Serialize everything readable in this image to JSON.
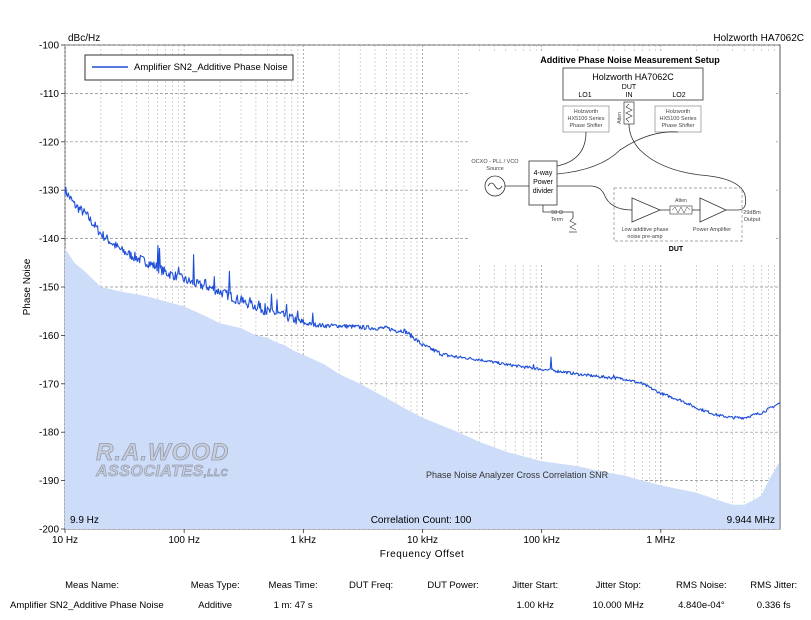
{
  "chart_data": {
    "type": "line",
    "instrument": "Holzworth HA7062C",
    "y_unit": "dBc/Hz",
    "xlabel": "Frequency Offset",
    "ylabel": "Phase Noise",
    "xscale": "log",
    "xlim": [
      10,
      10000000
    ],
    "ylim": [
      -200,
      -100
    ],
    "x_ticks": [
      {
        "value": 10,
        "label": "10 Hz"
      },
      {
        "value": 100,
        "label": "100 Hz"
      },
      {
        "value": 1000,
        "label": "1 kHz"
      },
      {
        "value": 10000,
        "label": "10 kHz"
      },
      {
        "value": 100000,
        "label": "100 kHz"
      },
      {
        "value": 1000000,
        "label": "1 MHz"
      }
    ],
    "y_ticks": [
      -100,
      -110,
      -120,
      -130,
      -140,
      -150,
      -160,
      -170,
      -180,
      -190,
      -200
    ],
    "grid": true,
    "legend": {
      "position": "top-left",
      "entries": [
        "Amplifier SN2_Additive Phase Noise"
      ]
    },
    "start_label": "9.9 Hz",
    "stop_label": "9.944 MHz",
    "correlation_label": "Correlation Count:  100",
    "snr_label": "Phase Noise Analyzer Cross Correlation SNR",
    "series": [
      {
        "name": "Amplifier SN2_Additive Phase Noise",
        "color": "#1f4fd8",
        "x": [
          10,
          12,
          15,
          20,
          25,
          30,
          40,
          50,
          60,
          70,
          80,
          100,
          130,
          160,
          200,
          250,
          300,
          400,
          500,
          600,
          700,
          800,
          1000,
          1500,
          2000,
          3000,
          4000,
          5000,
          6000,
          7000,
          8000,
          10000,
          15000,
          20000,
          30000,
          50000,
          70000,
          100000,
          150000,
          200000,
          300000,
          500000,
          700000,
          1000000,
          1500000,
          2000000,
          3000000,
          4000000,
          5000000,
          7000000,
          9944000
        ],
        "y": [
          -130,
          -133,
          -135,
          -139,
          -141,
          -142.5,
          -144,
          -145,
          -146,
          -147,
          -147.5,
          -148.5,
          -149.5,
          -150,
          -151,
          -152,
          -153,
          -154,
          -155,
          -155.5,
          -156,
          -156.5,
          -157.5,
          -158,
          -158,
          -158.3,
          -158.5,
          -158.5,
          -159,
          -159,
          -160,
          -162,
          -164,
          -164.5,
          -165,
          -166,
          -166.5,
          -167,
          -167.5,
          -168,
          -168.5,
          -169,
          -170,
          -172,
          -173.5,
          -175,
          -176.5,
          -177,
          -177,
          -176,
          -174
        ]
      },
      {
        "name": "Phase Noise Analyzer Cross Correlation SNR",
        "color": "#cddcf8",
        "fill": true,
        "x": [
          10,
          12,
          15,
          20,
          30,
          40,
          50,
          70,
          100,
          150,
          200,
          300,
          400,
          500,
          600,
          700,
          800,
          1000,
          1500,
          2000,
          3000,
          5000,
          7000,
          10000,
          20000,
          30000,
          50000,
          100000,
          200000,
          300000,
          500000,
          700000,
          1000000,
          2000000,
          3000000,
          4000000,
          5000000,
          6000000,
          7000000,
          8000000,
          9944000
        ],
        "y": [
          -142,
          -145,
          -147,
          -150,
          -151,
          -151.5,
          -152,
          -153,
          -154,
          -156,
          -157.5,
          -158.5,
          -160,
          -160.5,
          -161.5,
          -162,
          -163,
          -164,
          -166,
          -168,
          -170,
          -173,
          -175,
          -177,
          -180,
          -182,
          -184,
          -186,
          -187,
          -188,
          -189,
          -190,
          -191,
          -192.5,
          -194,
          -195,
          -195,
          -194,
          -193,
          -190,
          -186
        ]
      }
    ]
  },
  "inset": {
    "title": "Additive Phase Noise Measurement Setup",
    "analyzer": "Holzworth HA7062C",
    "lo1": "LO1",
    "dut_in": "DUT",
    "in": "IN",
    "lo2": "LO2",
    "shifter": [
      "Holzworth",
      "HX5100 Series",
      "Phase Shifter"
    ],
    "atten": "Atten",
    "source": [
      "OCXO - PLL / VCO",
      "Source"
    ],
    "divider": [
      "4-way",
      "Power",
      "divider"
    ],
    "term": [
      "50 Ω",
      "Term"
    ],
    "preamp": [
      "Low additive phase",
      "noise pre-amp"
    ],
    "amp_label": "Power Amplifier",
    "output": [
      "29dBm",
      "Output"
    ],
    "dut_label": "DUT"
  },
  "watermark": {
    "line1": "R.A.WOOD",
    "line2": "ASSOCIATES",
    "suffix": ",LLC"
  },
  "table": {
    "headers": [
      "Meas Name:",
      "Meas Type:",
      "Meas Time:",
      "DUT Freq:",
      "DUT Power:",
      "Jitter Start:",
      "Jitter Stop:",
      "RMS Noise:",
      "RMS Jitter:"
    ],
    "row": [
      "Amplifier SN2_Additive Phase Noise",
      "Additive",
      "1 m: 47 s",
      "",
      "",
      "1.00 kHz",
      "10.000 MHz",
      "4.840e-04°",
      "0.336 fs"
    ]
  }
}
